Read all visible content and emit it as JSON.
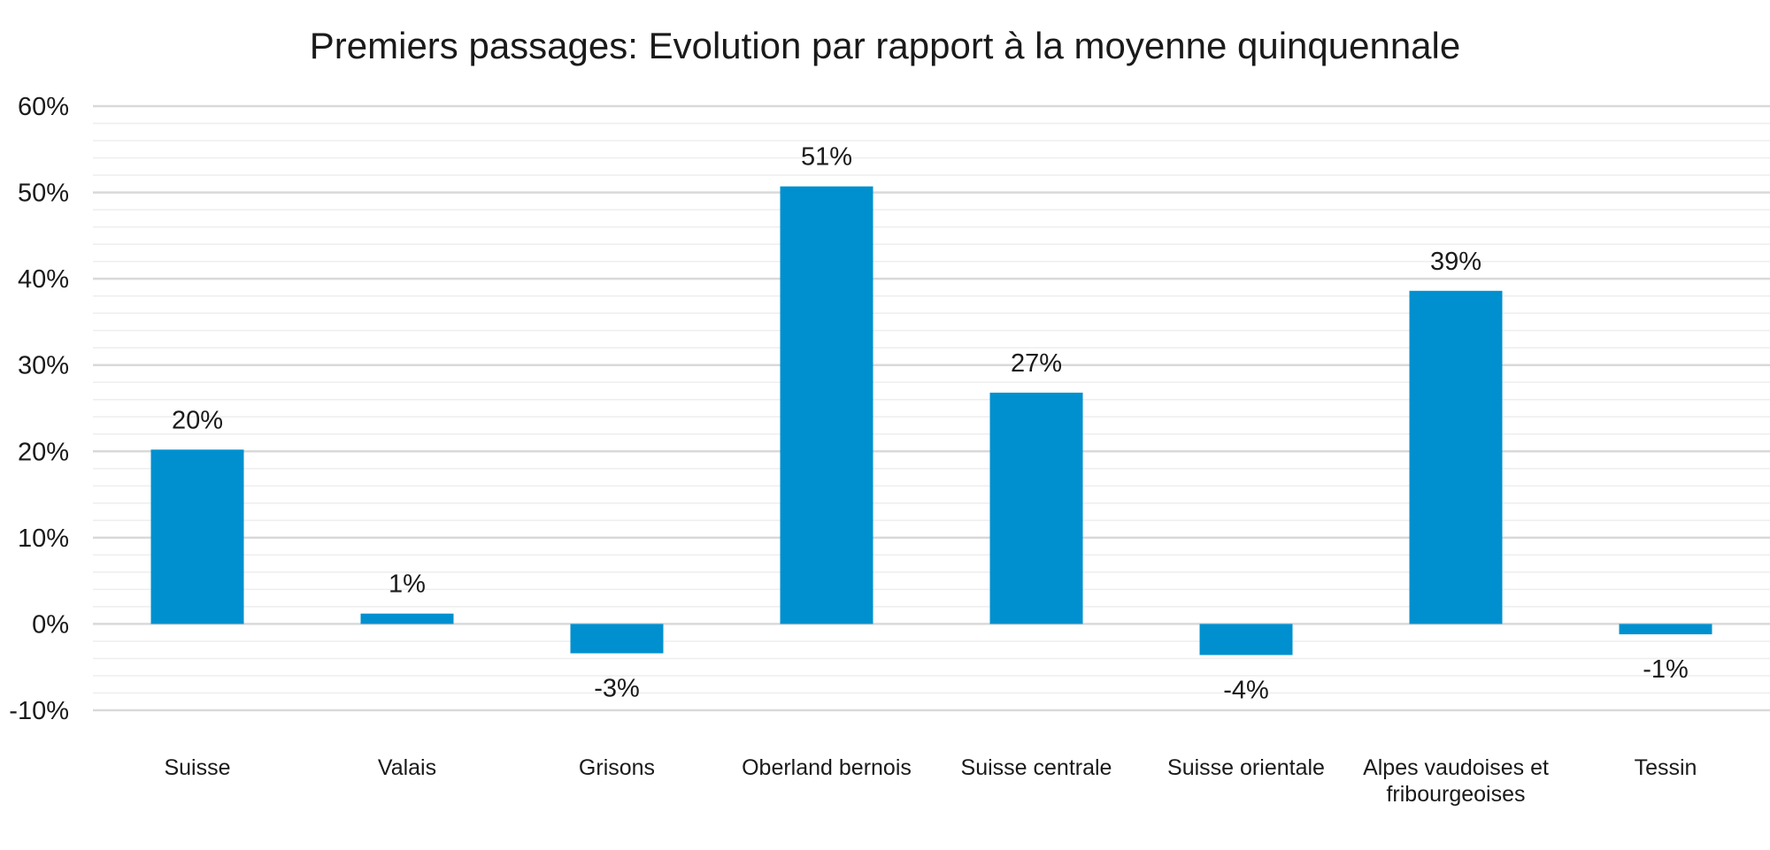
{
  "chart_data": {
    "type": "bar",
    "title": "Premiers passages: Evolution par rapport à la moyenne quinquennale",
    "xlabel": "",
    "ylabel": "",
    "categories": [
      [
        "Suisse"
      ],
      [
        "Valais"
      ],
      [
        "Grisons"
      ],
      [
        "Oberland bernois"
      ],
      [
        "Suisse centrale"
      ],
      [
        "Suisse orientale"
      ],
      [
        "Alpes vaudoises et",
        "fribourgeoises"
      ],
      [
        "Tessin"
      ]
    ],
    "values": [
      20.2,
      1.2,
      -3.4,
      50.7,
      26.8,
      -3.6,
      38.6,
      -1.2
    ],
    "data_labels": [
      "20%",
      "1%",
      "-3%",
      "51%",
      "27%",
      "-4%",
      "39%",
      "-1%"
    ],
    "ylim": [
      -10,
      60
    ],
    "y_ticks": [
      -10,
      0,
      10,
      20,
      30,
      40,
      50,
      60
    ],
    "y_tick_labels": [
      "-10%",
      "0%",
      "10%",
      "20%",
      "30%",
      "40%",
      "50%",
      "60%"
    ],
    "minor_grid_step": 2,
    "grid": true,
    "legend": "none",
    "colors": {
      "bar": "#0090cf",
      "major_grid": "#d9d9d9",
      "minor_grid": "#eeeeee",
      "text": "#1a1a1a"
    }
  }
}
